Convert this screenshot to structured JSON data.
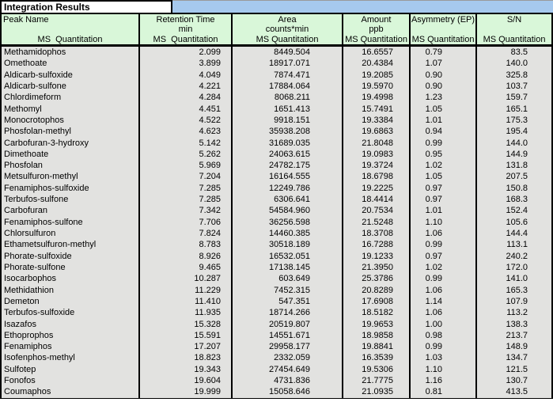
{
  "title": "Integration Results",
  "colors": {
    "header_green": "#d9f7d9",
    "row_gray": "#e2e2e0",
    "title_band_blue": "#a6c9ee",
    "border_black": "#000000"
  },
  "table": {
    "columns": [
      {
        "name": "Peak Name",
        "unit": "",
        "sub": "MS  Quantitation"
      },
      {
        "name": "Retention Time",
        "unit": "min",
        "sub": "MS  Quantitation"
      },
      {
        "name": "Area",
        "unit": "counts*min",
        "sub": "MS Quantitation"
      },
      {
        "name": "Amount",
        "unit": "ppb",
        "sub": "MS Quantitation"
      },
      {
        "name": "Asymmetry (EP)",
        "unit": "",
        "sub": "MS Quantitation"
      },
      {
        "name": "S/N",
        "unit": "",
        "sub": "MS Quantitation"
      }
    ],
    "rows": [
      [
        "Methamidophos",
        "2.099",
        "8449.504",
        "16.6557",
        "0.79",
        "83.5"
      ],
      [
        "Omethoate",
        "3.899",
        "18917.071",
        "20.4384",
        "1.07",
        "140.0"
      ],
      [
        "Aldicarb-sulfoxide",
        "4.049",
        "7874.471",
        "19.2085",
        "0.90",
        "325.8"
      ],
      [
        "Aldicarb-sulfone",
        "4.221",
        "17884.064",
        "19.5970",
        "0.90",
        "103.7"
      ],
      [
        "Chlordimeform",
        "4.284",
        "8068.211",
        "19.4998",
        "1.23",
        "159.7"
      ],
      [
        "Methomyl",
        "4.451",
        "1651.413",
        "15.7491",
        "1.05",
        "165.1"
      ],
      [
        "Monocrotophos",
        "4.522",
        "9918.151",
        "19.3384",
        "1.01",
        "175.3"
      ],
      [
        "Phosfolan-methyl",
        "4.623",
        "35938.208",
        "19.6863",
        "0.94",
        "195.4"
      ],
      [
        "Carbofuran-3-hydroxy",
        "5.142",
        "31689.035",
        "21.8048",
        "0.99",
        "144.0"
      ],
      [
        "Dimethoate",
        "5.262",
        "24063.615",
        "19.0983",
        "0.95",
        "144.9"
      ],
      [
        "Phosfolan",
        "5.969",
        "24782.175",
        "19.3724",
        "1.02",
        "131.8"
      ],
      [
        "Metsulfuron-methyl",
        "7.204",
        "16164.555",
        "18.6798",
        "1.05",
        "207.5"
      ],
      [
        "Fenamiphos-sulfoxide",
        "7.285",
        "12249.786",
        "19.2225",
        "0.97",
        "150.8"
      ],
      [
        "Terbufos-sulfone",
        "7.285",
        "6306.641",
        "18.4414",
        "0.97",
        "168.3"
      ],
      [
        "Carbofuran",
        "7.342",
        "54584.960",
        "20.7534",
        "1.01",
        "152.4"
      ],
      [
        "Fenamiphos-sulfone",
        "7.706",
        "36256.598",
        "21.5248",
        "1.10",
        "105.6"
      ],
      [
        "Chlorsulfuron",
        "7.824",
        "14460.385",
        "18.3708",
        "1.06",
        "144.4"
      ],
      [
        "Ethametsulfuron-methyl",
        "8.783",
        "30518.189",
        "16.7288",
        "0.99",
        "113.1"
      ],
      [
        "Phorate-sulfoxide",
        "8.926",
        "16532.051",
        "19.1233",
        "0.97",
        "240.2"
      ],
      [
        "Phorate-sulfone",
        "9.465",
        "17138.145",
        "21.3950",
        "1.02",
        "172.0"
      ],
      [
        "Isocarbophos",
        "10.287",
        "603.649",
        "25.3786",
        "0.99",
        "141.0"
      ],
      [
        "Methidathion",
        "11.229",
        "7452.315",
        "20.8289",
        "1.06",
        "165.3"
      ],
      [
        "Demeton",
        "11.410",
        "547.351",
        "17.6908",
        "1.14",
        "107.9"
      ],
      [
        "Terbufos-sulfoxide",
        "11.935",
        "18714.266",
        "18.5182",
        "1.06",
        "113.2"
      ],
      [
        "Isazafos",
        "15.328",
        "20519.807",
        "19.9653",
        "1.00",
        "138.3"
      ],
      [
        "Ethoprophos",
        "15.591",
        "14551.671",
        "18.9858",
        "0.98",
        "213.7"
      ],
      [
        "Fenamiphos",
        "17.207",
        "29958.177",
        "19.8841",
        "0.99",
        "148.9"
      ],
      [
        "Isofenphos-methyl",
        "18.823",
        "2332.059",
        "16.3539",
        "1.03",
        "134.7"
      ],
      [
        "Sulfotep",
        "19.343",
        "27454.649",
        "19.5306",
        "1.10",
        "121.5"
      ],
      [
        "Fonofos",
        "19.604",
        "4731.836",
        "21.7775",
        "1.16",
        "130.7"
      ],
      [
        "Coumaphos",
        "19.999",
        "15058.646",
        "21.0935",
        "0.81",
        "413.5"
      ]
    ]
  }
}
